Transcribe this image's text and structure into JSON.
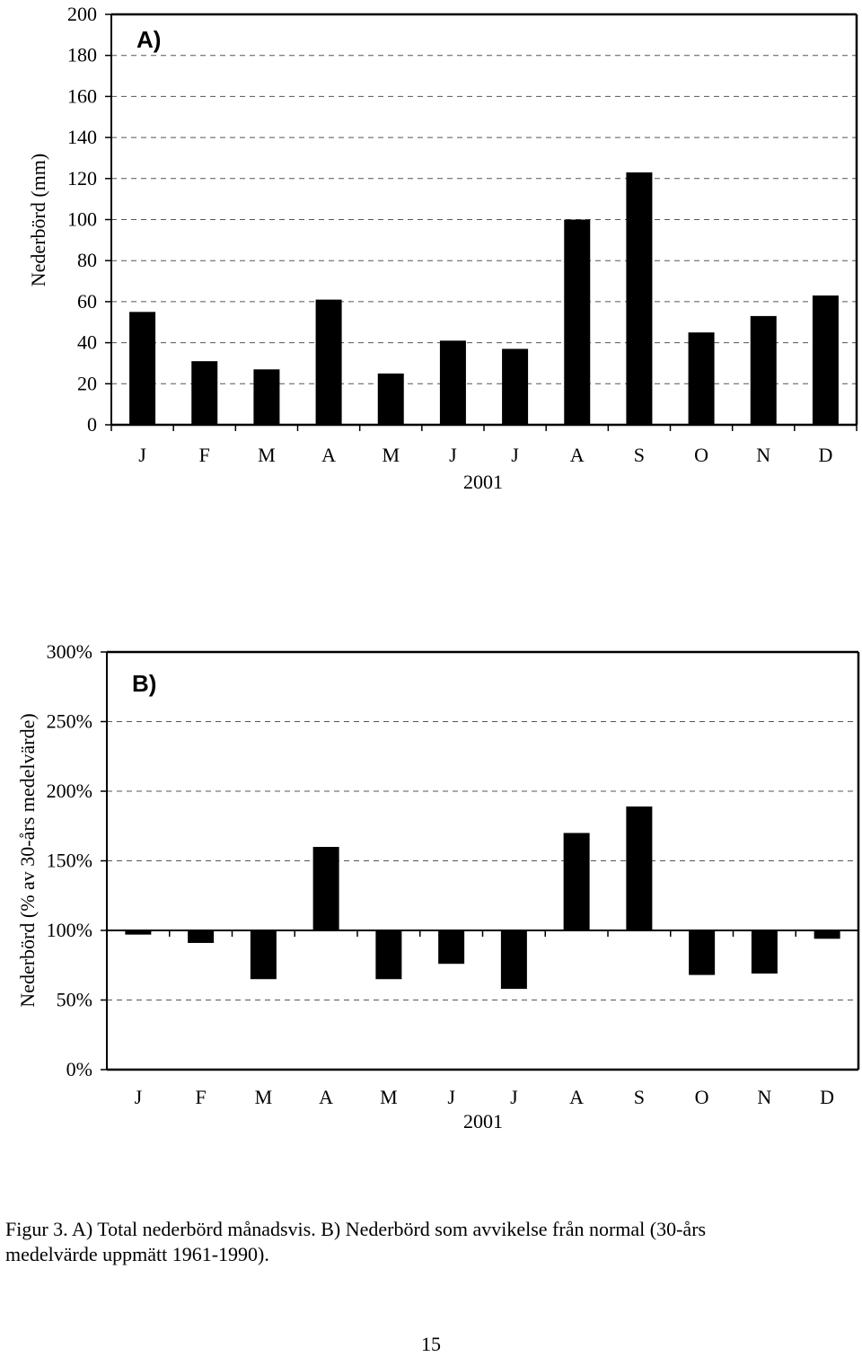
{
  "chart_data": [
    {
      "type": "bar",
      "panel_label": "A)",
      "categories": [
        "J",
        "F",
        "M",
        "A",
        "M",
        "J",
        "J",
        "A",
        "S",
        "O",
        "N",
        "D"
      ],
      "values": [
        55,
        31,
        27,
        61,
        25,
        41,
        37,
        100,
        123,
        45,
        53,
        63
      ],
      "ylabel": "Nederbörd (mm)",
      "xlabel": "2001",
      "ylim": [
        0,
        200
      ],
      "yticks": [
        0,
        20,
        40,
        60,
        80,
        100,
        120,
        140,
        160,
        180,
        200
      ],
      "ytick_labels": [
        "0",
        "20",
        "40",
        "60",
        "80",
        "100",
        "120",
        "140",
        "160",
        "180",
        "200"
      ],
      "grid": "dashed horizontal",
      "bar_color": "#000000"
    },
    {
      "type": "bar",
      "panel_label": "B)",
      "categories": [
        "J",
        "F",
        "M",
        "A",
        "M",
        "J",
        "J",
        "A",
        "S",
        "O",
        "N",
        "D"
      ],
      "values": [
        97,
        91,
        65,
        160,
        65,
        76,
        58,
        170,
        189,
        68,
        69,
        94
      ],
      "baseline": 100,
      "ylabel": "Nederbörd (% av 30-års medelvärde)",
      "xlabel": "2001",
      "ylim": [
        0,
        300
      ],
      "yticks": [
        0,
        50,
        100,
        150,
        200,
        250,
        300
      ],
      "ytick_labels": [
        "0%",
        "50%",
        "100%",
        "150%",
        "200%",
        "250%",
        "300%"
      ],
      "grid": "dashed horizontal",
      "bar_color": "#000000"
    }
  ],
  "caption": {
    "line1": "Figur 3. A) Total nederbörd månadsvis. B) Nederbörd som avvikelse från normal (30-års",
    "line2": "medelvärde uppmätt 1961-1990)."
  },
  "page_number": "15"
}
